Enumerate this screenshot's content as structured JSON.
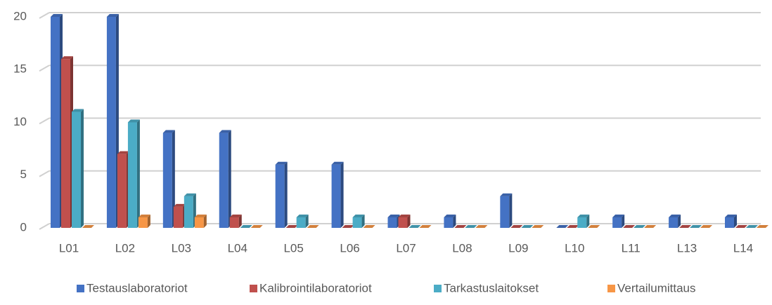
{
  "chart_data": {
    "type": "bar",
    "categories": [
      "L01",
      "L02",
      "L03",
      "L04",
      "L05",
      "L06",
      "L07",
      "L08",
      "L09",
      "L10",
      "L11",
      "L13",
      "L14"
    ],
    "series": [
      {
        "name": "Testauslaboratoriot",
        "color": "#4472c4",
        "values": [
          20,
          20,
          9,
          9,
          6,
          6,
          1,
          1,
          3,
          0,
          1,
          1,
          1
        ]
      },
      {
        "name": "Kalibrointilaboratoriot",
        "color": "#c0504d",
        "values": [
          16,
          7,
          2,
          1,
          0,
          0,
          1,
          0,
          0,
          0,
          0,
          0,
          0
        ]
      },
      {
        "name": "Tarkastuslaitokset",
        "color": "#4bacc6",
        "values": [
          11,
          10,
          3,
          0,
          1,
          1,
          0,
          0,
          0,
          1,
          0,
          0,
          0
        ]
      },
      {
        "name": "Vertailumittaus",
        "color": "#f79646",
        "values": [
          0,
          1,
          1,
          0,
          0,
          0,
          0,
          0,
          0,
          0,
          0,
          0,
          0
        ]
      }
    ],
    "ylim": [
      0,
      20
    ],
    "yticks": [
      0,
      5,
      10,
      15,
      20
    ],
    "grid": true,
    "legend": "bottom"
  }
}
